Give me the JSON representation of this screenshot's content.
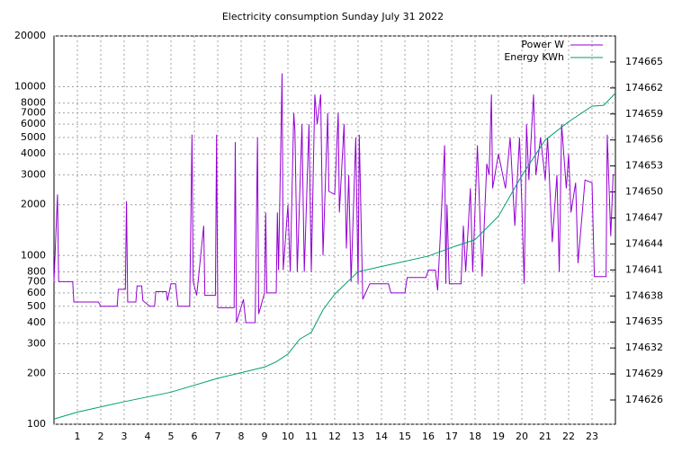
{
  "chart_data": {
    "type": "line",
    "title": "Electricity consumption Sunday July 31 2022",
    "xlim": [
      0,
      24
    ],
    "xticks": [
      1,
      2,
      3,
      4,
      5,
      6,
      7,
      8,
      9,
      10,
      11,
      12,
      13,
      14,
      15,
      16,
      17,
      18,
      19,
      20,
      21,
      22,
      23
    ],
    "ylim": [
      100,
      20000
    ],
    "log_y": true,
    "yticks": [
      100,
      200,
      300,
      400,
      500,
      600,
      700,
      800,
      1000,
      2000,
      3000,
      4000,
      5000,
      6000,
      7000,
      8000,
      10000,
      20000
    ],
    "y2lim": [
      174623.2,
      174668
    ],
    "y2ticks": [
      174626,
      174629,
      174632,
      174635,
      174638,
      174641,
      174644,
      174647,
      174650,
      174653,
      174656,
      174659,
      174662,
      174665
    ],
    "grid": true,
    "legend": "top-right",
    "series": [
      {
        "name": "Power W",
        "color": "#9400d3",
        "x": [
          0,
          0.15,
          0.2,
          0.8,
          0.85,
          1.9,
          2,
          2.7,
          2.75,
          3.05,
          3.1,
          3.15,
          3.5,
          3.55,
          3.75,
          3.8,
          4.1,
          4.3,
          4.35,
          4.8,
          4.85,
          5.0,
          5.2,
          5.3,
          5.8,
          5.9,
          5.95,
          6.1,
          6.4,
          6.45,
          6.9,
          6.95,
          7.0,
          7.7,
          7.75,
          7.8,
          8.1,
          8.2,
          8.6,
          8.7,
          8.75,
          9.0,
          9.05,
          9.1,
          9.5,
          9.55,
          9.6,
          9.75,
          9.8,
          10.0,
          10.1,
          10.25,
          10.3,
          10.4,
          10.6,
          10.7,
          10.9,
          11.0,
          11.15,
          11.25,
          11.4,
          11.5,
          11.7,
          11.75,
          12.0,
          12.15,
          12.2,
          12.4,
          12.5,
          12.6,
          12.7,
          12.9,
          13.0,
          13.05,
          13.2,
          13.5,
          14.3,
          14.4,
          15.0,
          15.1,
          15.9,
          16.0,
          16.3,
          16.4,
          16.7,
          16.75,
          16.8,
          16.9,
          17.4,
          17.5,
          17.6,
          17.8,
          17.9,
          18.1,
          18.3,
          18.5,
          18.6,
          18.7,
          18.75,
          19.0,
          19.3,
          19.5,
          19.7,
          19.9,
          20.0,
          20.1,
          20.2,
          20.3,
          20.5,
          20.6,
          20.8,
          21.0,
          21.1,
          21.3,
          21.5,
          21.6,
          21.7,
          21.9,
          22.0,
          22.1,
          22.3,
          22.4,
          22.7,
          23.0,
          23.1,
          23.6,
          23.65,
          23.8,
          23.9,
          24.0
        ],
        "values": [
          700,
          2300,
          700,
          700,
          530,
          530,
          500,
          500,
          630,
          630,
          2100,
          530,
          530,
          660,
          660,
          540,
          500,
          500,
          610,
          610,
          540,
          680,
          680,
          500,
          500,
          5200,
          700,
          580,
          1500,
          580,
          580,
          5200,
          490,
          490,
          4700,
          400,
          550,
          400,
          400,
          5000,
          450,
          600,
          1800,
          600,
          600,
          1800,
          820,
          12000,
          820,
          2000,
          800,
          7000,
          5500,
          800,
          6000,
          800,
          6000,
          800,
          9000,
          6000,
          9000,
          1000,
          7000,
          2400,
          2300,
          7000,
          1800,
          6000,
          1100,
          3000,
          700,
          5000,
          680,
          5200,
          550,
          680,
          680,
          600,
          600,
          740,
          740,
          820,
          820,
          620,
          4500,
          680,
          2000,
          680,
          680,
          1500,
          800,
          2500,
          800,
          4500,
          750,
          3500,
          3000,
          9000,
          2500,
          4000,
          2500,
          5000,
          1500,
          5000,
          2000,
          680,
          6000,
          2800,
          9000,
          3000,
          5000,
          2800,
          5000,
          1200,
          3000,
          800,
          6000,
          2500,
          4000,
          1800,
          2700,
          900,
          2800,
          2700,
          750,
          750,
          5200,
          1300,
          3000,
          3000
        ]
      },
      {
        "name": "Energy KWh",
        "color": "#009e73",
        "axis": "y2",
        "x": [
          0,
          1,
          3,
          5,
          7,
          9,
          9.5,
          10,
          10.5,
          11,
          11.5,
          12,
          12.5,
          13,
          14,
          16,
          17,
          18,
          19,
          20,
          21,
          22,
          23,
          23.5,
          24
        ],
        "values": [
          174623.8,
          174624.6,
          174625.8,
          174626.9,
          174628.5,
          174629.8,
          174630.4,
          174631.3,
          174633.0,
          174633.8,
          174636.4,
          174638.2,
          174639.5,
          174640.8,
          174641.4,
          174642.6,
          174643.6,
          174644.5,
          174647.2,
          174651.9,
          174656.0,
          174658.1,
          174659.9,
          174660.0,
          174661.4
        ]
      }
    ]
  }
}
